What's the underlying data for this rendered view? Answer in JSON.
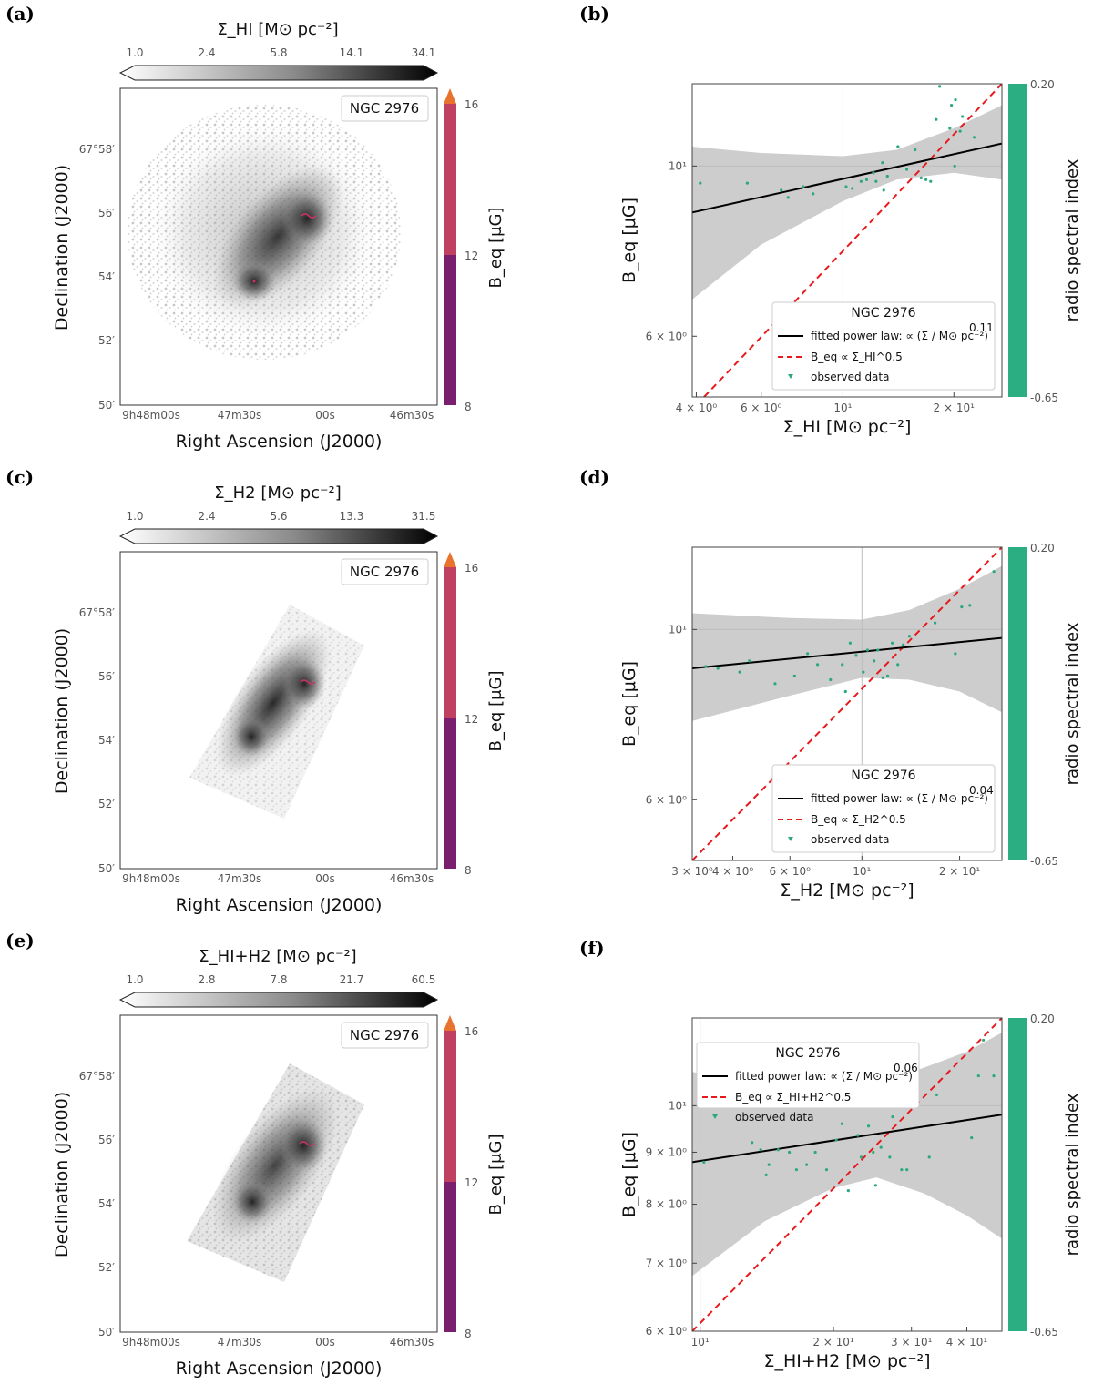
{
  "colors": {
    "fit_line": "#000000",
    "reference_line": "#e8191b",
    "points": "#2aa87f",
    "band": "#c8c8c8",
    "spectral_bar": "#2aae82",
    "beq_low": "#7a1f6e",
    "beq_mid": "#c0405f",
    "beq_high": "#e8732f"
  },
  "common": {
    "galaxy": "NGC 2976",
    "map_xlabel": "Right Ascension (J2000)",
    "map_ylabel": "Declination (J2000)",
    "map_xticks": [
      "9h48m00s",
      "47m30s",
      "00s",
      "46m30s"
    ],
    "map_yticks": [
      "50′",
      "52′",
      "54′",
      "56′",
      "67°58′"
    ],
    "beq_label": "B_eq [μG]",
    "beq_ticks": [
      "8",
      "12",
      "16"
    ],
    "spectral_label": "radio spectral index",
    "spectral_ticks": [
      "0.20",
      "-0.65"
    ],
    "ylabel": "B_eq [μG]",
    "legend_data": "observed data"
  },
  "chart_data": [
    {
      "panel": "(a)",
      "type": "heatmap",
      "colorbar_title": "Σ_HI [M⊙ pc⁻²]",
      "colorbar_ticks": [
        "1.0",
        "2.4",
        "5.8",
        "14.1",
        "34.1"
      ],
      "extent": "full"
    },
    {
      "panel": "(b)",
      "type": "scatter",
      "xlabel": "Σ_HI [M⊙ pc⁻²]",
      "ylabel": "B_eq [μG]",
      "xscale": "log",
      "yscale": "log",
      "xlim": [
        3.9,
        27
      ],
      "ylim": [
        5.0,
        12.8
      ],
      "xticks": [
        {
          "v": 4,
          "t": "4 × 10⁰"
        },
        {
          "v": 6,
          "t": "6 × 10⁰"
        },
        {
          "v": 10,
          "t": "10¹"
        },
        {
          "v": 20,
          "t": "2 × 10¹"
        }
      ],
      "yticks": [
        {
          "v": 6,
          "t": "6 × 10⁰"
        },
        {
          "v": 10,
          "t": "10¹"
        }
      ],
      "fit_exponent": "0.11",
      "fit_label": "fitted power law:",
      "ref_label": "∝ Σ_HI^0.5",
      "fit": [
        [
          3.9,
          8.7
        ],
        [
          27,
          10.7
        ]
      ],
      "reference": [
        [
          4.2,
          5.0
        ],
        [
          27,
          12.8
        ]
      ],
      "band_upper": [
        [
          3.9,
          10.6
        ],
        [
          6,
          10.4
        ],
        [
          10,
          10.3
        ],
        [
          14,
          10.5
        ],
        [
          20,
          11.2
        ],
        [
          27,
          12.0
        ]
      ],
      "band_lower": [
        [
          3.9,
          6.7
        ],
        [
          6,
          7.9
        ],
        [
          10,
          9.0
        ],
        [
          14,
          9.6
        ],
        [
          20,
          9.8
        ],
        [
          27,
          9.6
        ]
      ],
      "points": [
        [
          4.1,
          9.5
        ],
        [
          5.5,
          9.5
        ],
        [
          6.8,
          9.3
        ],
        [
          7.1,
          9.1
        ],
        [
          7.8,
          9.4
        ],
        [
          8.3,
          9.2
        ],
        [
          10.2,
          9.4
        ],
        [
          10.6,
          9.35
        ],
        [
          11.2,
          9.55
        ],
        [
          11.6,
          9.6
        ],
        [
          12.1,
          9.8
        ],
        [
          12.3,
          9.55
        ],
        [
          12.9,
          9.3
        ],
        [
          13.2,
          9.7
        ],
        [
          12.8,
          10.1
        ],
        [
          14.1,
          10.6
        ],
        [
          14.9,
          9.9
        ],
        [
          15.7,
          10.5
        ],
        [
          16.3,
          9.65
        ],
        [
          16.8,
          9.6
        ],
        [
          17.3,
          9.55
        ],
        [
          17.9,
          11.5
        ],
        [
          19.5,
          11.2
        ],
        [
          20.1,
          10.0
        ],
        [
          20.8,
          11.1
        ],
        [
          19.7,
          12.0
        ],
        [
          20.2,
          12.2
        ],
        [
          21.1,
          11.6
        ],
        [
          18.3,
          12.7
        ],
        [
          22.7,
          10.9
        ]
      ]
    },
    {
      "panel": "(c)",
      "type": "heatmap",
      "colorbar_title": "Σ_H2 [M⊙ pc⁻²]",
      "colorbar_ticks": [
        "1.0",
        "2.4",
        "5.6",
        "13.3",
        "31.5"
      ],
      "extent": "strip"
    },
    {
      "panel": "(d)",
      "type": "scatter",
      "xlabel": "Σ_H2 [M⊙ pc⁻²]",
      "ylabel": "B_eq [μG]",
      "xscale": "log",
      "yscale": "log",
      "xlim": [
        3.0,
        27
      ],
      "ylim": [
        5.0,
        12.8
      ],
      "xticks": [
        {
          "v": 3,
          "t": "3 × 10⁰"
        },
        {
          "v": 4,
          "t": "4 × 10⁰"
        },
        {
          "v": 6,
          "t": "6 × 10⁰"
        },
        {
          "v": 10,
          "t": "10¹"
        },
        {
          "v": 20,
          "t": "2 × 10¹"
        }
      ],
      "yticks": [
        {
          "v": 6,
          "t": "6 × 10⁰"
        },
        {
          "v": 10,
          "t": "10¹"
        }
      ],
      "fit_exponent": "0.04",
      "fit_label": "fitted power law:",
      "ref_label": "∝ Σ_H2^0.5",
      "fit": [
        [
          3.0,
          8.9
        ],
        [
          27,
          9.75
        ]
      ],
      "reference": [
        [
          3.0,
          5.0
        ],
        [
          27,
          12.8
        ]
      ],
      "band_upper": [
        [
          3.0,
          10.5
        ],
        [
          6,
          10.35
        ],
        [
          10,
          10.3
        ],
        [
          14,
          10.6
        ],
        [
          20,
          11.3
        ],
        [
          27,
          12.1
        ]
      ],
      "band_lower": [
        [
          3.0,
          7.6
        ],
        [
          6,
          8.2
        ],
        [
          10,
          8.65
        ],
        [
          14,
          8.6
        ],
        [
          20,
          8.3
        ],
        [
          27,
          7.8
        ]
      ],
      "points": [
        [
          3.3,
          8.95
        ],
        [
          3.6,
          8.9
        ],
        [
          4.2,
          8.8
        ],
        [
          4.5,
          9.1
        ],
        [
          5.4,
          8.5
        ],
        [
          6.2,
          8.7
        ],
        [
          6.8,
          9.3
        ],
        [
          7.3,
          9.0
        ],
        [
          8.0,
          8.6
        ],
        [
          8.7,
          9.0
        ],
        [
          8.9,
          8.3
        ],
        [
          9.2,
          9.6
        ],
        [
          9.6,
          9.25
        ],
        [
          10.1,
          8.8
        ],
        [
          10.4,
          9.4
        ],
        [
          10.9,
          9.1
        ],
        [
          11.2,
          9.4
        ],
        [
          11.6,
          8.65
        ],
        [
          12.0,
          8.7
        ],
        [
          12.4,
          9.6
        ],
        [
          12.9,
          9.0
        ],
        [
          13.4,
          9.55
        ],
        [
          14.0,
          9.8
        ],
        [
          16.8,
          10.2
        ],
        [
          19.4,
          9.3
        ],
        [
          20.3,
          10.7
        ],
        [
          21.5,
          10.75
        ],
        [
          25.5,
          11.9
        ]
      ]
    },
    {
      "panel": "(e)",
      "type": "heatmap",
      "colorbar_title": "Σ_HI+H2 [M⊙ pc⁻²]",
      "colorbar_ticks": [
        "1.0",
        "2.8",
        "7.8",
        "21.7",
        "60.5"
      ],
      "extent": "strip"
    },
    {
      "panel": "(f)",
      "type": "scatter",
      "xlabel": "Σ_HI+H2 [M⊙ pc⁻²]",
      "ylabel": "B_eq [μG]",
      "xscale": "log",
      "yscale": "log",
      "xlim": [
        9.6,
        48
      ],
      "ylim": [
        6.0,
        12.2
      ],
      "xticks": [
        {
          "v": 10,
          "t": "10¹"
        },
        {
          "v": 20,
          "t": "2 × 10¹"
        },
        {
          "v": 30,
          "t": "3 × 10¹"
        },
        {
          "v": 40,
          "t": "4 × 10¹"
        }
      ],
      "yticks": [
        {
          "v": 6,
          "t": "6 × 10⁰"
        },
        {
          "v": 7,
          "t": "7 × 10⁰"
        },
        {
          "v": 8,
          "t": "8 × 10⁰"
        },
        {
          "v": 9,
          "t": "9 × 10⁰"
        },
        {
          "v": 10,
          "t": "10¹"
        }
      ],
      "fit_exponent": "0.06",
      "fit_label": "fitted power law:",
      "ref_label": "∝ Σ_HI+H2^0.5",
      "fit": [
        [
          9.6,
          8.8
        ],
        [
          48,
          9.8
        ]
      ],
      "reference": [
        [
          9.6,
          6.0
        ],
        [
          48,
          12.2
        ]
      ],
      "band_upper": [
        [
          9.6,
          10.8
        ],
        [
          14,
          10.4
        ],
        [
          20,
          10.3
        ],
        [
          25,
          10.5
        ],
        [
          32,
          10.9
        ],
        [
          40,
          11.3
        ],
        [
          48,
          11.8
        ]
      ],
      "band_lower": [
        [
          9.6,
          6.8
        ],
        [
          14,
          7.7
        ],
        [
          20,
          8.3
        ],
        [
          25,
          8.5
        ],
        [
          32,
          8.2
        ],
        [
          40,
          7.8
        ],
        [
          48,
          7.4
        ]
      ],
      "points": [
        [
          10.2,
          8.8
        ],
        [
          13.1,
          9.2
        ],
        [
          13.7,
          9.05
        ],
        [
          14.1,
          8.55
        ],
        [
          14.3,
          8.75
        ],
        [
          15.0,
          9.05
        ],
        [
          15.9,
          9.0
        ],
        [
          16.5,
          8.65
        ],
        [
          17.4,
          8.75
        ],
        [
          18.2,
          9.0
        ],
        [
          19.3,
          8.65
        ],
        [
          20.3,
          9.25
        ],
        [
          20.9,
          9.6
        ],
        [
          21.6,
          8.25
        ],
        [
          22.7,
          9.35
        ],
        [
          23.1,
          8.9
        ],
        [
          24.0,
          9.55
        ],
        [
          24.6,
          9.0
        ],
        [
          24.9,
          8.35
        ],
        [
          25.6,
          9.1
        ],
        [
          26.8,
          8.9
        ],
        [
          27.2,
          9.75
        ],
        [
          28.5,
          8.65
        ],
        [
          29.3,
          8.65
        ],
        [
          32.9,
          8.9
        ],
        [
          34.2,
          10.25
        ],
        [
          41.0,
          9.3
        ],
        [
          42.5,
          10.7
        ],
        [
          43.6,
          11.6
        ],
        [
          46.0,
          10.7
        ]
      ]
    }
  ]
}
